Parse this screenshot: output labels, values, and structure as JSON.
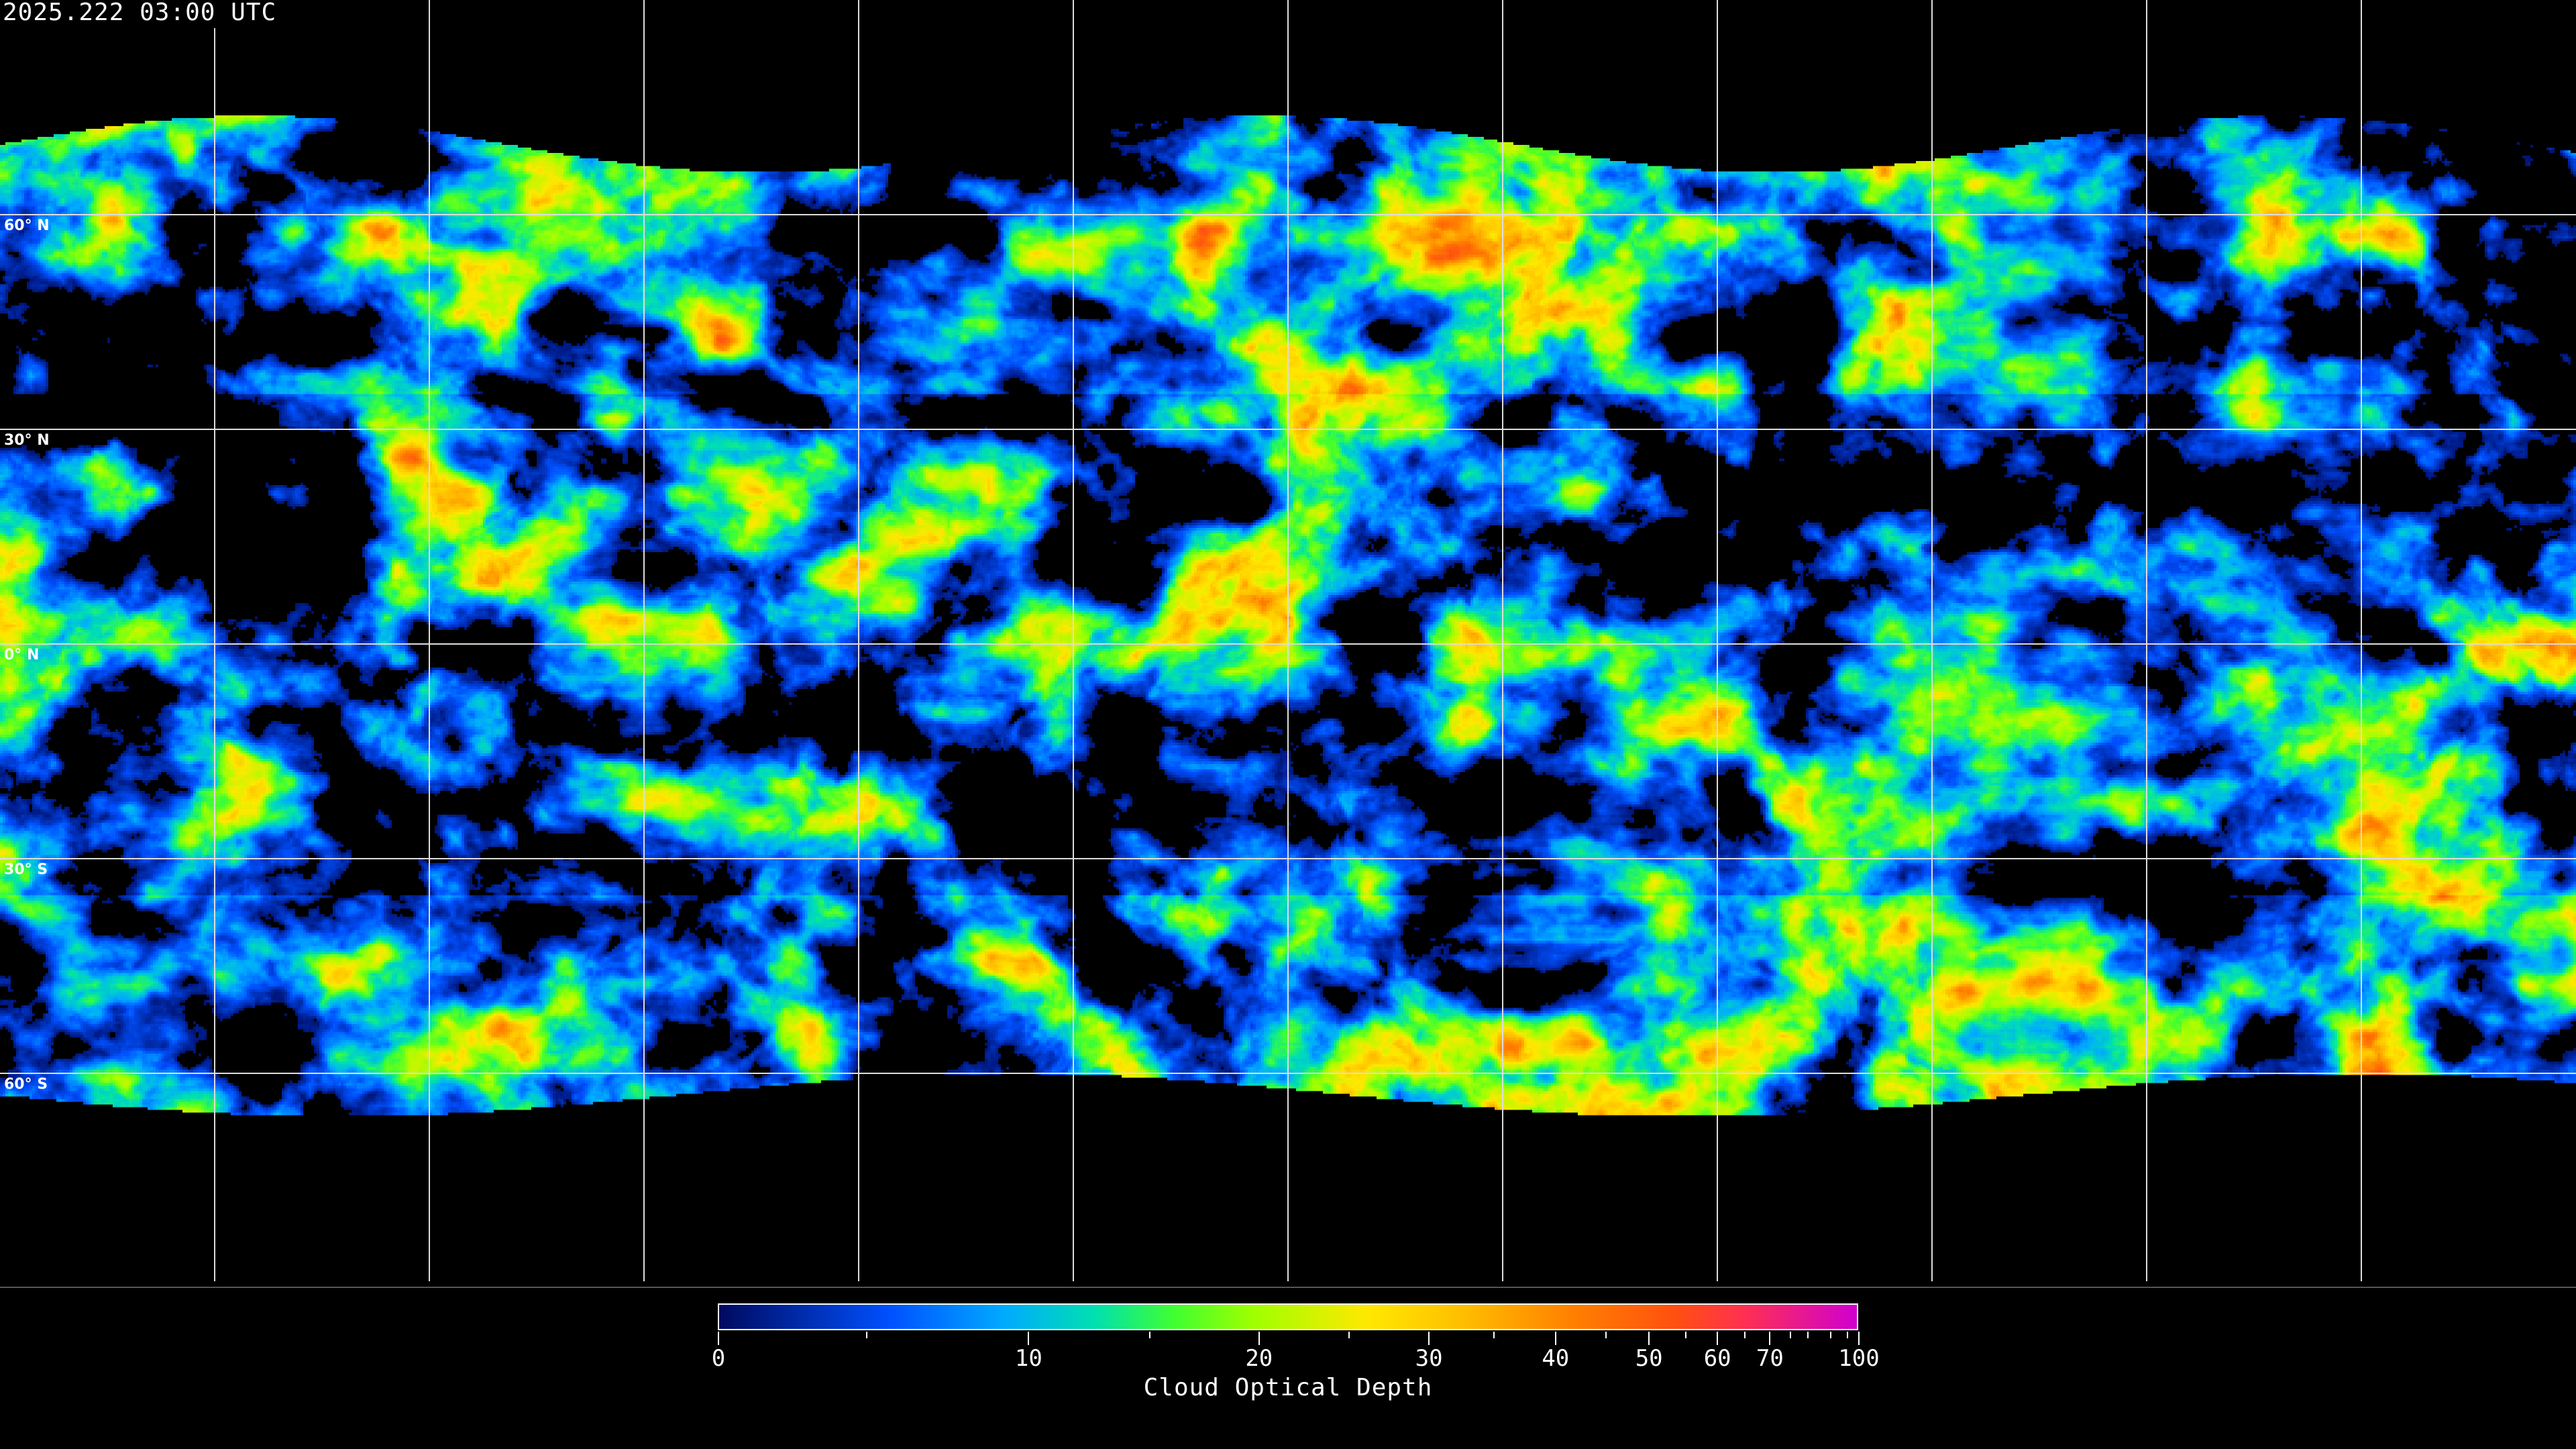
{
  "header": {
    "timestamp": "2025.222 03:00 UTC"
  },
  "map": {
    "projection": "equirectangular",
    "gridline_spacing_degrees": 30,
    "latitude_labels": [
      "60° N",
      "30° N",
      "0° N",
      "30° S",
      "60° S"
    ],
    "gridline_color": "#ffffff",
    "coastline_color": "#ffffff",
    "no_data_color": "#000000"
  },
  "colorbar": {
    "title": "Cloud Optical Depth",
    "range": [
      0,
      100
    ],
    "tick_labels": [
      "0",
      "10",
      "20",
      "30",
      "40",
      "50",
      "60",
      "70",
      "100"
    ],
    "colors": [
      "#000a60",
      "#0050ff",
      "#00aaff",
      "#00e0b0",
      "#40ff30",
      "#a0ff00",
      "#ffe800",
      "#ffc000",
      "#ff8000",
      "#ff5010",
      "#ff3050",
      "#d000d0"
    ]
  }
}
